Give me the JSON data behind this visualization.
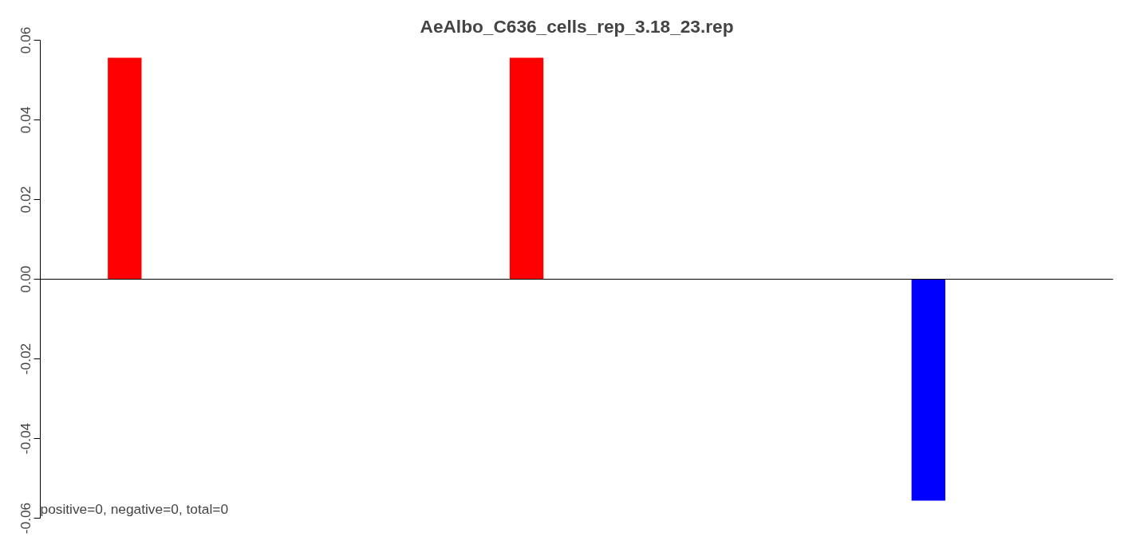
{
  "chart_data": {
    "type": "bar",
    "title": "AeAlbo_C636_cells_rep_3.18_23.rep",
    "categories": [
      null,
      null,
      null
    ],
    "values": [
      0.0556,
      0.0556,
      -0.0556
    ],
    "colors": [
      "#ff0000",
      "#ff0000",
      "#0000ff"
    ],
    "ylim": [
      -0.06,
      0.06
    ],
    "yticks": [
      {
        "value": -0.06,
        "label": "-0.06"
      },
      {
        "value": -0.04,
        "label": "-0.04"
      },
      {
        "value": -0.02,
        "label": "-0.02"
      },
      {
        "value": 0,
        "label": "0.00"
      },
      {
        "value": 0.02,
        "label": "0.02"
      },
      {
        "value": 0.04,
        "label": "0.04"
      },
      {
        "value": 0.06,
        "label": "0.06"
      }
    ],
    "ref_lines": [
      {
        "axis": "y",
        "value": 0,
        "color": "#000000"
      }
    ],
    "annotations": [
      "positive=0, negative=0, total=0"
    ],
    "grid": false
  }
}
